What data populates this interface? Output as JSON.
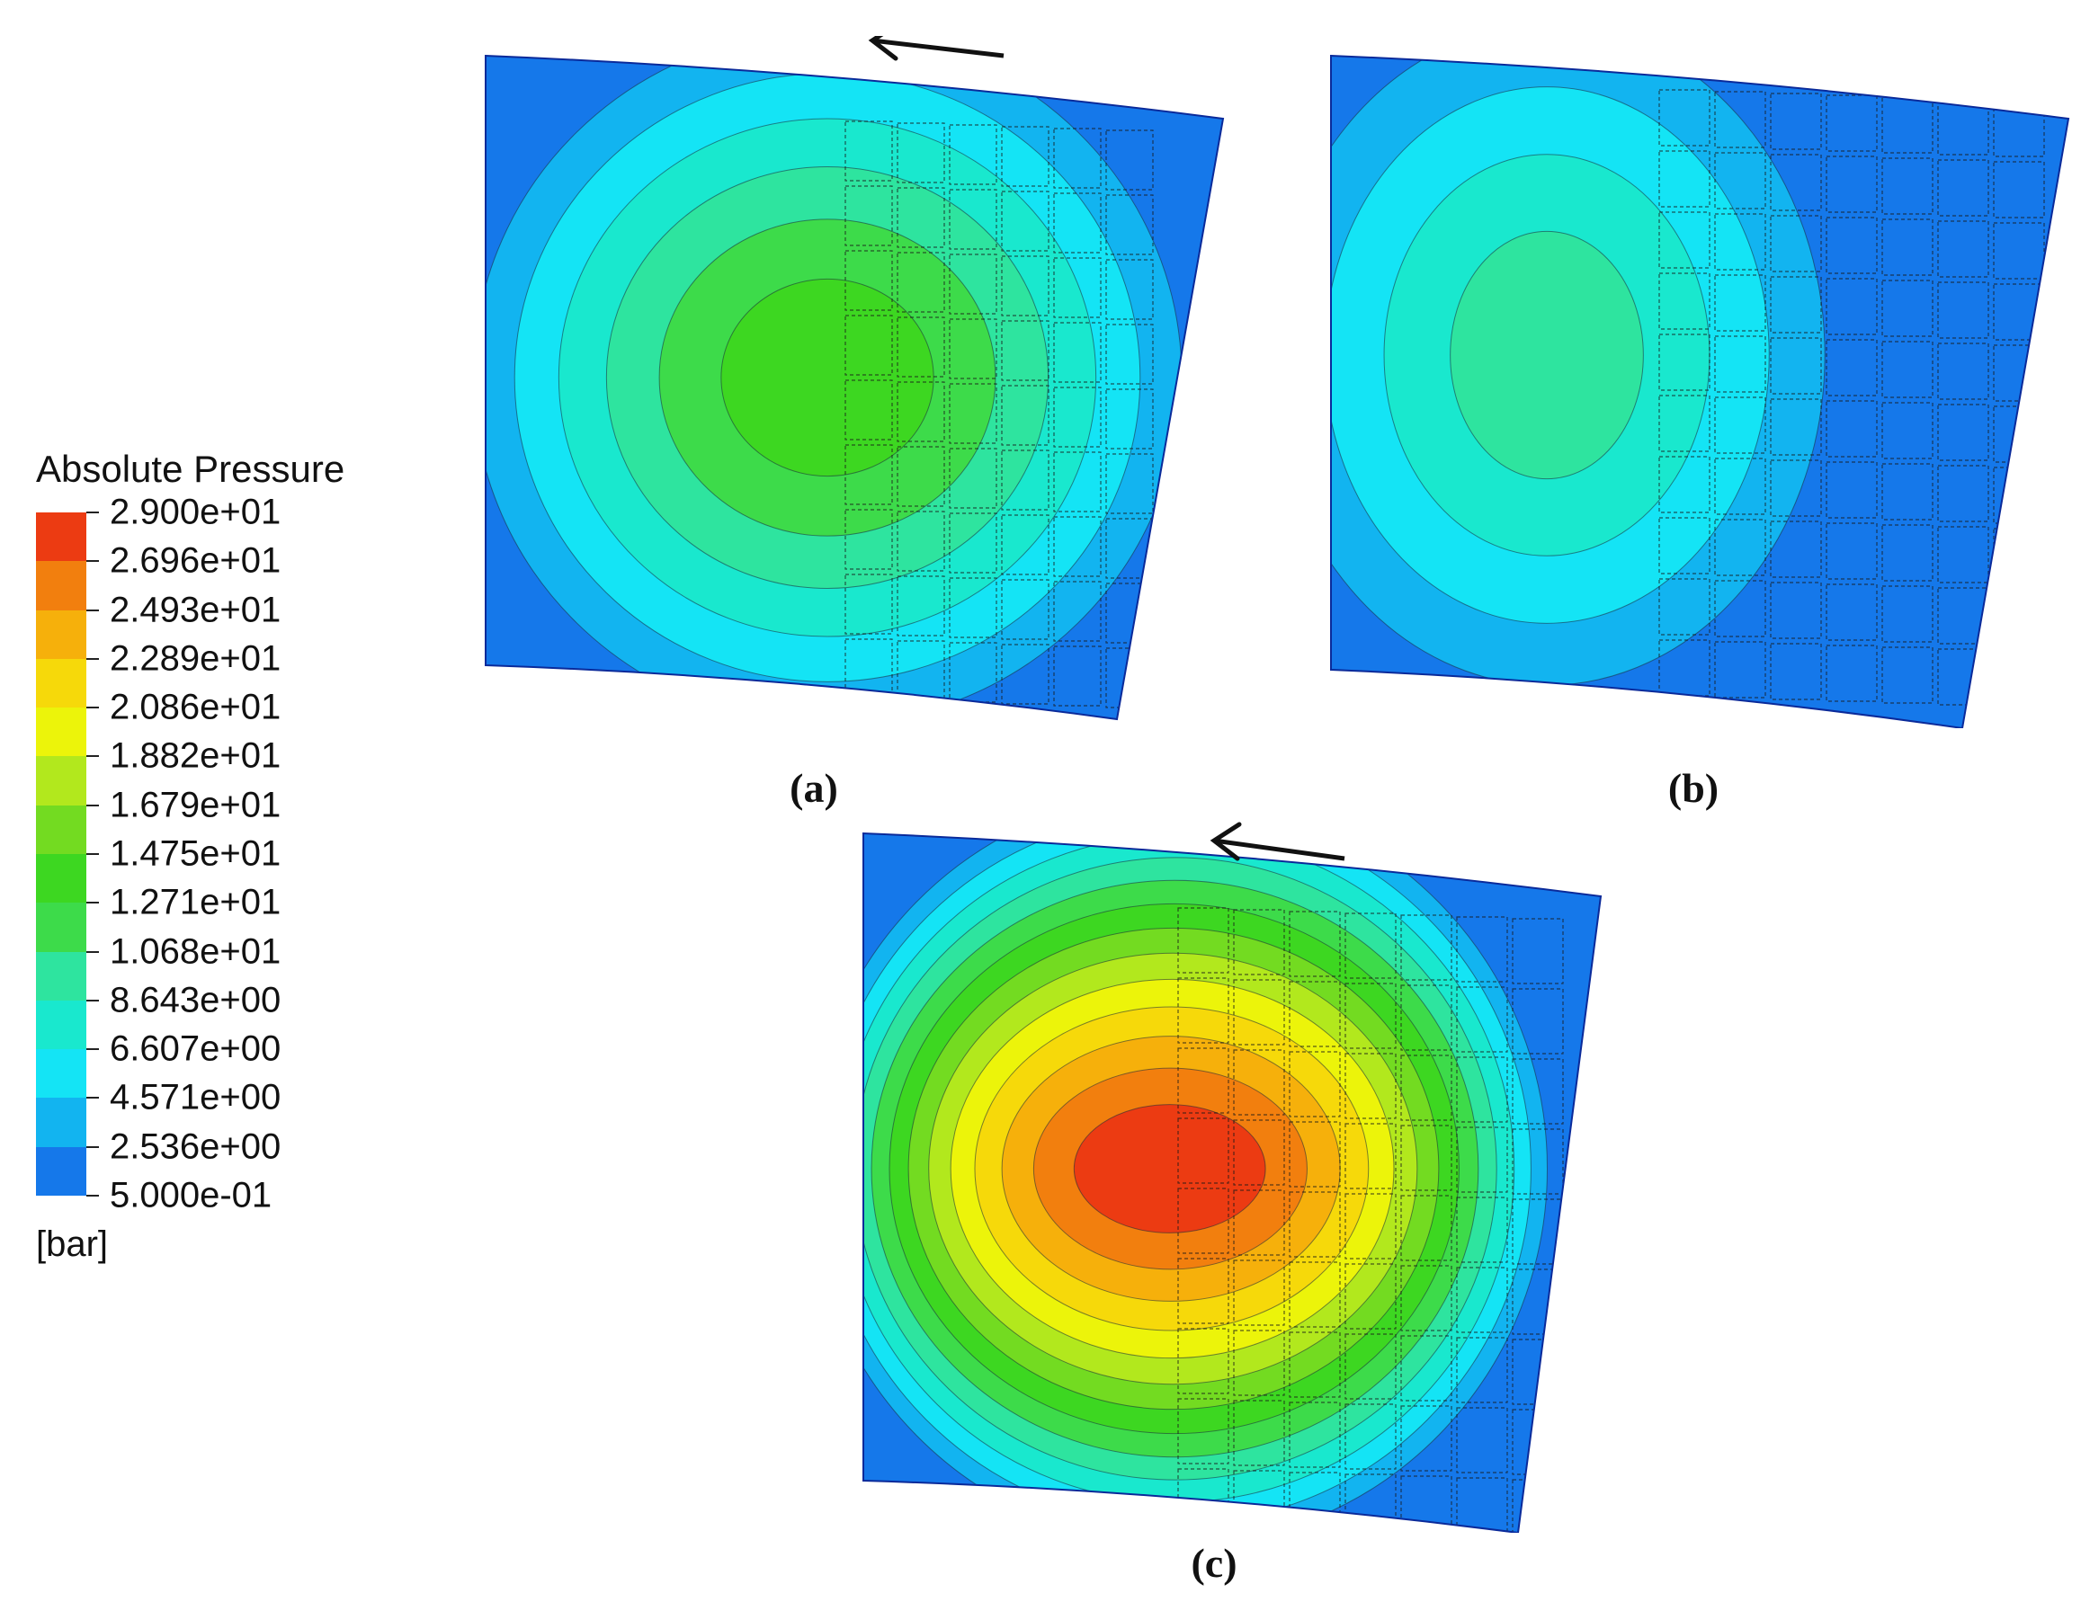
{
  "legend": {
    "title": "Absolute Pressure",
    "unit": "[bar]",
    "levels": [
      "2.900e+01",
      "2.696e+01",
      "2.493e+01",
      "2.289e+01",
      "2.086e+01",
      "1.882e+01",
      "1.679e+01",
      "1.475e+01",
      "1.271e+01",
      "1.068e+01",
      "8.643e+00",
      "6.607e+00",
      "4.571e+00",
      "2.536e+00",
      "5.000e-01"
    ],
    "colors": [
      "#ec3b12",
      "#f27f0e",
      "#f6b00b",
      "#f6d90a",
      "#ecf40a",
      "#b2e81d",
      "#73db21",
      "#3dd721",
      "#3ddb4a",
      "#2ee49f",
      "#19e8ce",
      "#14e4f5",
      "#12b4f0",
      "#1578ea",
      "#0a3ce8"
    ]
  },
  "panels": [
    {
      "label": "(a)",
      "peak_level_index": 7,
      "rotation_arrow": true
    },
    {
      "label": "(b)",
      "peak_level_index": 9,
      "rotation_arrow": false
    },
    {
      "label": "(c)",
      "peak_level_index": 0,
      "rotation_arrow": true
    }
  ]
}
